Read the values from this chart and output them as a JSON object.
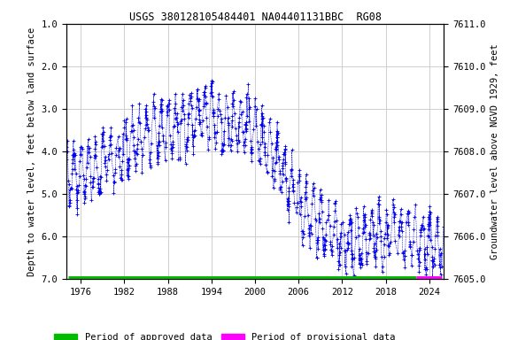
{
  "title": "USGS 380128105484401 NA04401131BBC  RG08",
  "ylabel_left": "Depth to water level, feet below land surface",
  "ylabel_right": "Groundwater level above NGVD 1929, feet",
  "ylim_left": [
    7.0,
    1.0
  ],
  "ylim_right": [
    7605.0,
    7611.0
  ],
  "xlim": [
    1974,
    2026
  ],
  "xticks": [
    1976,
    1982,
    1988,
    1994,
    2000,
    2006,
    2012,
    2018,
    2024
  ],
  "yticks_left": [
    1.0,
    2.0,
    3.0,
    4.0,
    5.0,
    6.0,
    7.0
  ],
  "yticks_right": [
    7605.0,
    7606.0,
    7607.0,
    7608.0,
    7609.0,
    7610.0,
    7611.0
  ],
  "data_color": "#0000EE",
  "approved_color": "#00BB00",
  "provisional_color": "#FF00FF",
  "background_color": "#FFFFFF",
  "plot_bg_color": "#FFFFFF",
  "grid_color": "#C8C8C8",
  "title_fontsize": 8.5,
  "axis_label_fontsize": 7.5,
  "tick_fontsize": 7.5,
  "legend_fontsize": 7.5,
  "approved_bar_xstart": 1974.3,
  "approved_bar_xend": 2022.2,
  "provisional_bar_xstart": 2022.2,
  "provisional_bar_xend": 2025.8,
  "seed": 1234
}
